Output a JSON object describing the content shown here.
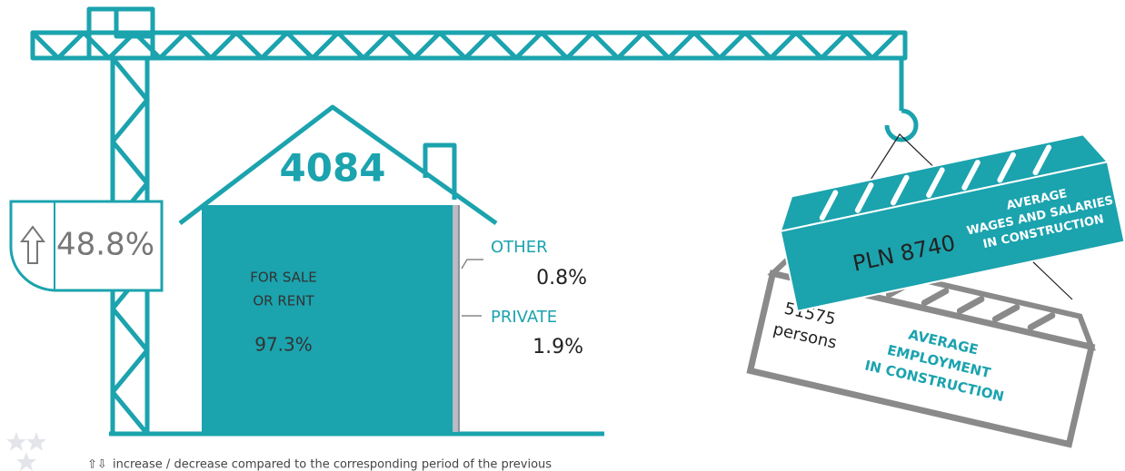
{
  "change": {
    "value_label": "48.8%"
  },
  "house": {
    "total": "4084",
    "segments": [
      {
        "label": [
          "FOR SALE",
          "OR RENT"
        ],
        "value": 97.3,
        "value_label": "97.3%",
        "color": "#1ba3ae"
      },
      {
        "label": [
          "PRIVATE"
        ],
        "value": 1.9,
        "value_label": "1.9%",
        "color": "#b9bcc4"
      },
      {
        "label": [
          "OTHER"
        ],
        "value": 0.8,
        "value_label": "0.8%",
        "color": "#8e929c"
      }
    ]
  },
  "wages": {
    "value_label": "PLN 8740",
    "caption": [
      "AVERAGE",
      "WAGES AND SALARIES",
      "IN CONSTRUCTION"
    ]
  },
  "employment": {
    "value_label": "51575",
    "unit": "persons",
    "caption": [
      "AVERAGE",
      "EMPLOYMENT",
      "IN CONSTRUCTION"
    ]
  },
  "footnote": "increase / decrease compared to the corresponding period of the previous"
}
